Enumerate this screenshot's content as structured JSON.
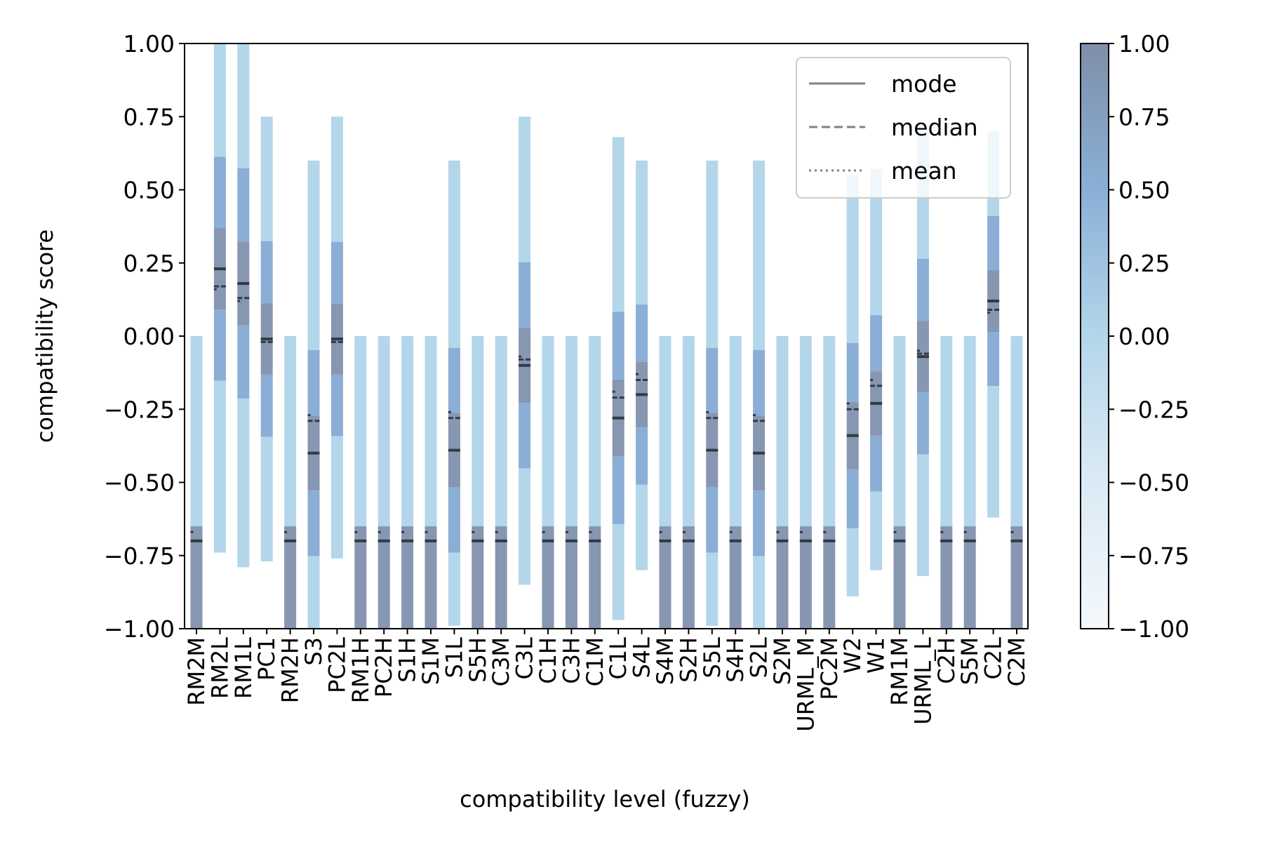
{
  "chart_data": {
    "type": "bar",
    "xlabel": "compatibility level (fuzzy)",
    "ylabel": "compatibility score",
    "ylim": [
      -1.0,
      1.0
    ],
    "yticks": [
      "1.00",
      "0.75",
      "0.50",
      "0.25",
      "0.00",
      "−0.25",
      "−0.50",
      "−0.75",
      "−1.00"
    ],
    "colorbar": {
      "range": [
        -1.0,
        1.0
      ],
      "ticks": [
        "1.00",
        "0.75",
        "0.50",
        "0.25",
        "0.00",
        "−0.25",
        "−0.50",
        "−0.75",
        "−1.00"
      ]
    },
    "legend": {
      "placement": "top-right",
      "entries": [
        "mode",
        "median",
        "mean"
      ]
    },
    "colors": {
      "light": "#b4d6ea",
      "mid": "#8aaed6",
      "dark": "#8796b1",
      "stat": "#333a44"
    },
    "categories": [
      "RM2M",
      "RM2L",
      "RM1L",
      "PC1",
      "RM2H",
      "S3",
      "PC2L",
      "RM1H",
      "PC2H",
      "S1H",
      "S1M",
      "S1L",
      "S5H",
      "C3M",
      "C3L",
      "C1H",
      "C3H",
      "C1M",
      "C1L",
      "S4L",
      "S4M",
      "S2H",
      "S5L",
      "S4H",
      "S2L",
      "S2M",
      "URML_M",
      "PC2M",
      "W2",
      "W1",
      "RM1M",
      "URML_L",
      "C2H",
      "S5M",
      "C2L",
      "C2M"
    ],
    "ranges": [
      [
        -1.0,
        0.0
      ],
      [
        -0.74,
        1.0
      ],
      [
        -0.79,
        1.0
      ],
      [
        -0.77,
        0.75
      ],
      [
        -1.0,
        0.0
      ],
      [
        -1.0,
        0.6
      ],
      [
        -0.76,
        0.75
      ],
      [
        -1.0,
        0.0
      ],
      [
        -1.0,
        0.0
      ],
      [
        -1.0,
        0.0
      ],
      [
        -1.0,
        0.0
      ],
      [
        -0.99,
        0.6
      ],
      [
        -1.0,
        0.0
      ],
      [
        -1.0,
        0.0
      ],
      [
        -0.85,
        0.75
      ],
      [
        -1.0,
        0.0
      ],
      [
        -1.0,
        0.0
      ],
      [
        -1.0,
        0.0
      ],
      [
        -0.97,
        0.68
      ],
      [
        -0.8,
        0.6
      ],
      [
        -1.0,
        0.0
      ],
      [
        -1.0,
        0.0
      ],
      [
        -0.99,
        0.6
      ],
      [
        -1.0,
        0.0
      ],
      [
        -1.0,
        0.6
      ],
      [
        -1.0,
        0.0
      ],
      [
        -1.0,
        0.0
      ],
      [
        -1.0,
        0.0
      ],
      [
        -0.89,
        0.55
      ],
      [
        -0.8,
        0.57
      ],
      [
        -1.0,
        0.0
      ],
      [
        -0.82,
        0.7
      ],
      [
        -1.0,
        0.0
      ],
      [
        -1.0,
        0.0
      ],
      [
        -0.62,
        0.7
      ],
      [
        -1.0,
        0.0
      ]
    ],
    "mode": [
      -0.7,
      0.23,
      0.18,
      -0.01,
      -0.7,
      -0.4,
      -0.01,
      -0.7,
      -0.7,
      -0.7,
      -0.7,
      -0.39,
      -0.7,
      -0.7,
      -0.1,
      -0.7,
      -0.7,
      -0.7,
      -0.28,
      -0.2,
      -0.7,
      -0.7,
      -0.39,
      -0.7,
      -0.4,
      -0.7,
      -0.7,
      -0.7,
      -0.34,
      -0.23,
      -0.7,
      -0.07,
      -0.7,
      -0.7,
      0.12,
      -0.7
    ],
    "median": [
      -0.7,
      0.17,
      0.13,
      -0.02,
      -0.7,
      -0.29,
      -0.02,
      -0.7,
      -0.7,
      -0.7,
      -0.7,
      -0.28,
      -0.7,
      -0.7,
      -0.08,
      -0.7,
      -0.7,
      -0.7,
      -0.21,
      -0.15,
      -0.7,
      -0.7,
      -0.28,
      -0.7,
      -0.29,
      -0.7,
      -0.7,
      -0.7,
      -0.25,
      -0.17,
      -0.7,
      -0.06,
      -0.7,
      -0.7,
      0.09,
      -0.7
    ],
    "mean": [
      -0.67,
      0.16,
      0.12,
      -0.02,
      -0.67,
      -0.27,
      -0.02,
      -0.67,
      -0.67,
      -0.67,
      -0.67,
      -0.26,
      -0.67,
      -0.67,
      -0.07,
      -0.67,
      -0.67,
      -0.67,
      -0.19,
      -0.13,
      -0.67,
      -0.67,
      -0.26,
      -0.67,
      -0.27,
      -0.67,
      -0.67,
      -0.67,
      -0.23,
      -0.15,
      -0.67,
      -0.05,
      -0.67,
      -0.67,
      0.08,
      -0.67
    ]
  }
}
